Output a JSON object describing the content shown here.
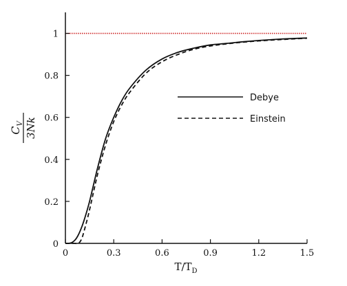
{
  "chart_data": {
    "type": "line",
    "title": "",
    "xlabel": "T/T",
    "xlabel_subscript": "D",
    "ylabel_numerator": "C",
    "ylabel_numerator_subscript": "V",
    "ylabel_denominator": "3Nk",
    "xlim": [
      0,
      1.5
    ],
    "ylim": [
      0,
      1.1
    ],
    "xticks": [
      0,
      0.3,
      0.6,
      0.9,
      1.2,
      1.5
    ],
    "xtick_labels": [
      "0",
      "0.3",
      "0.6",
      "0.9",
      "1.2",
      "1.5"
    ],
    "yticks": [
      0,
      0.2,
      0.4,
      0.6,
      0.8,
      1
    ],
    "ytick_labels": [
      "0",
      "0.2",
      "0.4",
      "0.6",
      "0.8",
      "1"
    ],
    "grid": false,
    "legend_position": "right-middle",
    "reference_line": {
      "y": 1,
      "color": "#cc2222",
      "style": "dotted"
    },
    "x": [
      0.0,
      0.02,
      0.04,
      0.06,
      0.08,
      0.1,
      0.12,
      0.15,
      0.2,
      0.25,
      0.3,
      0.35,
      0.4,
      0.5,
      0.6,
      0.7,
      0.8,
      0.9,
      1.0,
      1.1,
      1.2,
      1.3,
      1.4,
      1.5
    ],
    "series": [
      {
        "name": "Debye",
        "style": "solid",
        "color": "#111111",
        "values": [
          0.0,
          0.0,
          0.004,
          0.016,
          0.04,
          0.075,
          0.12,
          0.2,
          0.36,
          0.5,
          0.6,
          0.68,
          0.74,
          0.825,
          0.878,
          0.91,
          0.93,
          0.945,
          0.952,
          0.96,
          0.966,
          0.971,
          0.975,
          0.978
        ]
      },
      {
        "name": "Einstein",
        "style": "dashed",
        "color": "#111111",
        "values": [
          0.0,
          0.0,
          0.0,
          0.0,
          0.0,
          0.02,
          0.07,
          0.16,
          0.33,
          0.47,
          0.58,
          0.66,
          0.72,
          0.81,
          0.865,
          0.9,
          0.925,
          0.94,
          0.95,
          0.958,
          0.964,
          0.969,
          0.973,
          0.977
        ]
      }
    ]
  }
}
